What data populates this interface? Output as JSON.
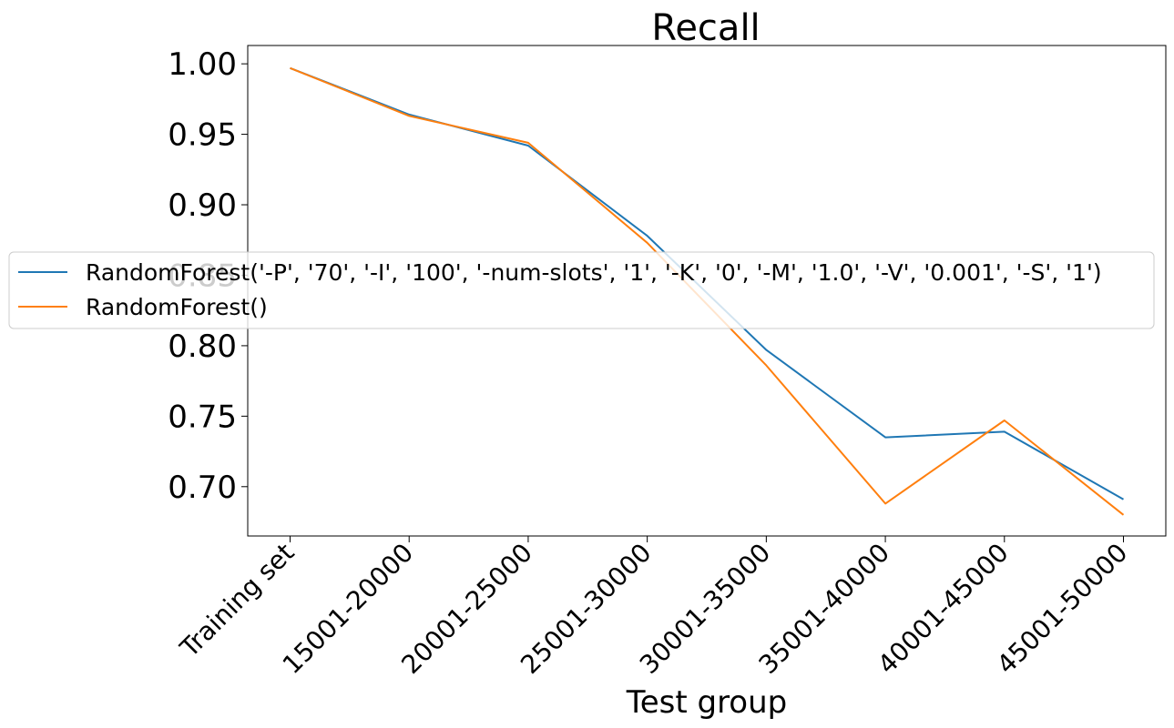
{
  "chart_data": {
    "type": "line",
    "title": "Recall",
    "xlabel": "Test group",
    "ylabel": "",
    "categories": [
      "Training set",
      "15001-20000",
      "20001-25000",
      "25001-30000",
      "30001-35000",
      "35001-40000",
      "40001-45000",
      "45001-50000"
    ],
    "ylim": [
      0.665,
      1.013
    ],
    "yticks": [
      0.7,
      0.75,
      0.8,
      0.85,
      0.9,
      0.95,
      1.0
    ],
    "ytick_labels": [
      "0.70",
      "0.75",
      "0.80",
      "0.85",
      "0.90",
      "0.95",
      "1.00"
    ],
    "grid": false,
    "legend_position": "center-left",
    "series": [
      {
        "name": "RandomForest('-P', '70', '-I', '100', '-num-slots', '1', '-K', '0', '-M', '1.0', '-V', '0.001', '-S', '1')",
        "color": "#1f77b4",
        "values": [
          0.997,
          0.964,
          0.942,
          0.878,
          0.797,
          0.735,
          0.739,
          0.691
        ]
      },
      {
        "name": "RandomForest()",
        "color": "#ff7f0e",
        "values": [
          0.997,
          0.963,
          0.944,
          0.873,
          0.786,
          0.688,
          0.747,
          0.68
        ]
      }
    ]
  }
}
